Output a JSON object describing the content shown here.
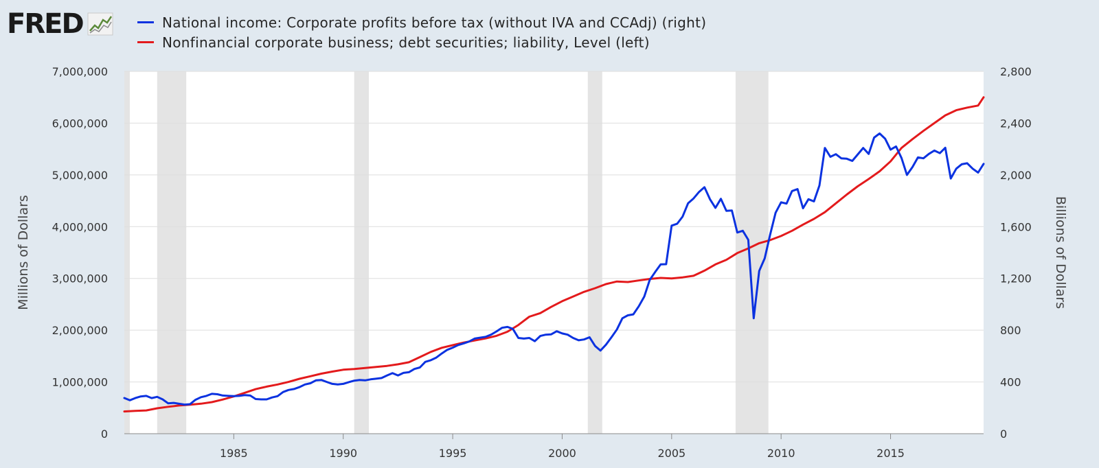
{
  "brand": {
    "name": "FRED"
  },
  "colors": {
    "series1": "#0b32e0",
    "series2": "#e31a1c",
    "recession": "#e4e4e4",
    "grid": "#dedede",
    "background": "#e1e9f0",
    "plot": "#ffffff"
  },
  "chart_data": {
    "type": "line",
    "title": "",
    "legend_position": "top-left",
    "x_range": [
      1980.0,
      2019.25
    ],
    "x_ticks": [
      "1985",
      "1990",
      "1995",
      "2000",
      "2005",
      "2010",
      "2015"
    ],
    "left_axis": {
      "label": "Millions of Dollars",
      "range": [
        0,
        7000000
      ],
      "ticks": [
        "0",
        "1,000,000",
        "2,000,000",
        "3,000,000",
        "4,000,000",
        "5,000,000",
        "6,000,000",
        "7,000,000"
      ]
    },
    "right_axis": {
      "label": "Billions of Dollars",
      "range": [
        0,
        2800
      ],
      "ticks": [
        "0",
        "400",
        "800",
        "1,200",
        "1,600",
        "2,000",
        "2,400",
        "2,800"
      ]
    },
    "recessions": [
      [
        1980.0,
        1980.25
      ],
      [
        1981.5,
        1982.83
      ],
      [
        1990.5,
        1991.17
      ],
      [
        2001.17,
        2001.83
      ],
      [
        2007.92,
        2009.42
      ]
    ],
    "series": [
      {
        "name": "National income: Corporate profits before tax (without IVA and CCAdj) (right)",
        "axis": "right",
        "x": [
          1980.0,
          1980.25,
          1980.5,
          1980.75,
          1981.0,
          1981.25,
          1981.5,
          1981.75,
          1982.0,
          1982.25,
          1982.5,
          1982.75,
          1983.0,
          1983.25,
          1983.5,
          1983.75,
          1984.0,
          1984.25,
          1984.5,
          1984.75,
          1985.0,
          1985.25,
          1985.5,
          1985.75,
          1986.0,
          1986.25,
          1986.5,
          1986.75,
          1987.0,
          1987.25,
          1987.5,
          1987.75,
          1988.0,
          1988.25,
          1988.5,
          1988.75,
          1989.0,
          1989.25,
          1989.5,
          1989.75,
          1990.0,
          1990.25,
          1990.5,
          1990.75,
          1991.0,
          1991.25,
          1991.5,
          1991.75,
          1992.0,
          1992.25,
          1992.5,
          1992.75,
          1993.0,
          1993.25,
          1993.5,
          1993.75,
          1994.0,
          1994.25,
          1994.5,
          1994.75,
          1995.0,
          1995.25,
          1995.5,
          1995.75,
          1996.0,
          1996.25,
          1996.5,
          1996.75,
          1997.0,
          1997.25,
          1997.5,
          1997.75,
          1998.0,
          1998.25,
          1998.5,
          1998.75,
          1999.0,
          1999.25,
          1999.5,
          1999.75,
          2000.0,
          2000.25,
          2000.5,
          2000.75,
          2001.0,
          2001.25,
          2001.5,
          2001.75,
          2002.0,
          2002.25,
          2002.5,
          2002.75,
          2003.0,
          2003.25,
          2003.5,
          2003.75,
          2004.0,
          2004.25,
          2004.5,
          2004.75,
          2005.0,
          2005.25,
          2005.5,
          2005.75,
          2006.0,
          2006.25,
          2006.5,
          2006.75,
          2007.0,
          2007.25,
          2007.5,
          2007.75,
          2008.0,
          2008.25,
          2008.5,
          2008.75,
          2009.0,
          2009.25,
          2009.5,
          2009.75,
          2010.0,
          2010.25,
          2010.5,
          2010.75,
          2011.0,
          2011.25,
          2011.5,
          2011.75,
          2012.0,
          2012.25,
          2012.5,
          2012.75,
          2013.0,
          2013.25,
          2013.5,
          2013.75,
          2014.0,
          2014.25,
          2014.5,
          2014.75,
          2015.0,
          2015.25,
          2015.5,
          2015.75,
          2016.0,
          2016.25,
          2016.5,
          2016.75,
          2017.0,
          2017.25,
          2017.5,
          2017.75,
          2018.0,
          2018.25,
          2018.5,
          2018.75,
          2019.0,
          2019.25
        ],
        "values": [
          276,
          258,
          275,
          288,
          292,
          275,
          285,
          265,
          235,
          238,
          232,
          225,
          228,
          262,
          282,
          292,
          308,
          305,
          295,
          292,
          290,
          292,
          298,
          295,
          268,
          265,
          265,
          280,
          290,
          322,
          338,
          345,
          360,
          380,
          390,
          412,
          415,
          400,
          385,
          380,
          385,
          398,
          410,
          415,
          412,
          420,
          425,
          430,
          450,
          468,
          450,
          470,
          475,
          500,
          512,
          555,
          568,
          588,
          620,
          648,
          665,
          685,
          698,
          712,
          735,
          742,
          748,
          765,
          790,
          818,
          825,
          810,
          740,
          735,
          740,
          715,
          755,
          765,
          768,
          792,
          775,
          765,
          740,
          722,
          728,
          745,
          678,
          642,
          688,
          745,
          805,
          892,
          915,
          922,
          985,
          1060,
          1188,
          1250,
          1308,
          1310,
          1608,
          1622,
          1678,
          1780,
          1818,
          1868,
          1905,
          1812,
          1745,
          1815,
          1722,
          1725,
          1555,
          1568,
          1498,
          892,
          1258,
          1355,
          1538,
          1708,
          1788,
          1778,
          1875,
          1890,
          1742,
          1812,
          1795,
          1918,
          2208,
          2140,
          2160,
          2128,
          2125,
          2108,
          2158,
          2208,
          2162,
          2288,
          2320,
          2280,
          2195,
          2220,
          2130,
          2000,
          2060,
          2135,
          2128,
          2162,
          2188,
          2168,
          2210,
          1972,
          2048,
          2082,
          2090,
          2048,
          2018,
          2085
        ]
      },
      {
        "name": "Nonfinancial corporate business; debt securities; liability, Level (left)",
        "axis": "left",
        "x": [
          1980.0,
          1980.5,
          1981.0,
          1981.5,
          1982.0,
          1982.5,
          1983.0,
          1983.5,
          1984.0,
          1984.5,
          1985.0,
          1985.5,
          1986.0,
          1986.5,
          1987.0,
          1987.5,
          1988.0,
          1988.5,
          1989.0,
          1989.5,
          1990.0,
          1990.5,
          1991.0,
          1991.5,
          1992.0,
          1992.5,
          1993.0,
          1993.5,
          1994.0,
          1994.5,
          1995.0,
          1995.5,
          1996.0,
          1996.5,
          1997.0,
          1997.5,
          1998.0,
          1998.5,
          1999.0,
          1999.5,
          2000.0,
          2000.5,
          2001.0,
          2001.5,
          2002.0,
          2002.5,
          2003.0,
          2003.5,
          2004.0,
          2004.5,
          2005.0,
          2005.5,
          2006.0,
          2006.5,
          2007.0,
          2007.5,
          2008.0,
          2008.5,
          2009.0,
          2009.5,
          2010.0,
          2010.5,
          2011.0,
          2011.5,
          2012.0,
          2012.5,
          2013.0,
          2013.5,
          2014.0,
          2014.5,
          2015.0,
          2015.5,
          2016.0,
          2016.5,
          2017.0,
          2017.5,
          2018.0,
          2018.5,
          2019.0,
          2019.25
        ],
        "values": [
          430000,
          440000,
          450000,
          490000,
          520000,
          545000,
          560000,
          580000,
          610000,
          660000,
          720000,
          790000,
          860000,
          910000,
          950000,
          1000000,
          1060000,
          1110000,
          1160000,
          1200000,
          1235000,
          1250000,
          1270000,
          1290000,
          1310000,
          1340000,
          1380000,
          1480000,
          1580000,
          1660000,
          1710000,
          1760000,
          1800000,
          1840000,
          1890000,
          1970000,
          2100000,
          2260000,
          2330000,
          2450000,
          2560000,
          2650000,
          2740000,
          2810000,
          2890000,
          2940000,
          2930000,
          2960000,
          2990000,
          3010000,
          3000000,
          3020000,
          3050000,
          3150000,
          3270000,
          3360000,
          3490000,
          3580000,
          3680000,
          3740000,
          3820000,
          3920000,
          4040000,
          4150000,
          4280000,
          4450000,
          4620000,
          4780000,
          4920000,
          5070000,
          5260000,
          5520000,
          5690000,
          5850000,
          6000000,
          6150000,
          6250000,
          6300000,
          6340000,
          6500000
        ]
      }
    ]
  }
}
